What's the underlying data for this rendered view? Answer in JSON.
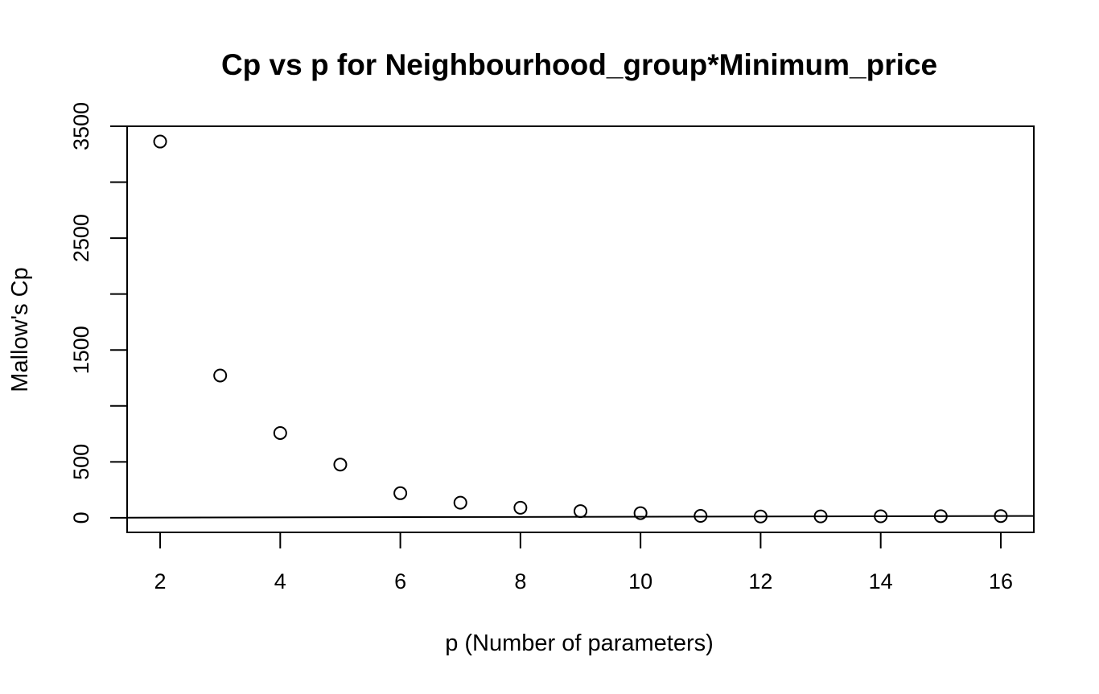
{
  "chart_data": {
    "type": "scatter",
    "title": "Cp vs p for Neighbourhood_group*Minimum_price",
    "xlabel": "p (Number of parameters)",
    "ylabel": "Mallow's Cp",
    "xlim": [
      1.45,
      16.55
    ],
    "ylim": [
      -130,
      3500
    ],
    "x_ticks": [
      2,
      4,
      6,
      8,
      10,
      12,
      14,
      16
    ],
    "x_tick_labels": [
      "2",
      "4",
      "6",
      "8",
      "10",
      "12",
      "14",
      "16"
    ],
    "y_ticks": [
      0,
      500,
      1000,
      1500,
      2000,
      2500,
      3000,
      3500
    ],
    "y_tick_labels": [
      "0",
      "500",
      "",
      "1500",
      "",
      "2500",
      "",
      "3500"
    ],
    "reference_line": {
      "type": "y=x",
      "description": "Cp = p"
    },
    "grid": false,
    "legend": "none",
    "marker": "open-circle",
    "series": [
      {
        "x": [
          2,
          3,
          4,
          5,
          6,
          7,
          8,
          9,
          10,
          11,
          12,
          13,
          14,
          15,
          16
        ],
        "values": [
          3363,
          1272,
          758,
          476,
          220,
          135,
          90,
          60,
          42,
          17,
          12,
          13,
          14,
          15,
          16
        ]
      }
    ],
    "colors": {
      "marker": "#000000",
      "line": "#000000",
      "background": "#ffffff"
    }
  }
}
